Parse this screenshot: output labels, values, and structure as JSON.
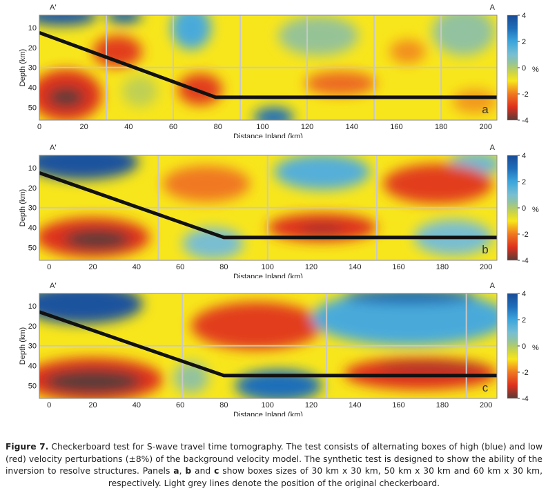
{
  "chart_data": [
    {
      "type": "heatmap",
      "panel_label": "a",
      "section_left": "A′",
      "section_right": "A",
      "xlabel": "Distance Inland (km)",
      "ylabel": "Depth (km)",
      "xlim": [
        0,
        205
      ],
      "ylim": [
        3.7,
        56.5
      ],
      "xticks": [
        0,
        20,
        40,
        60,
        80,
        100,
        120,
        140,
        160,
        180,
        200
      ],
      "yticks": [
        10,
        20,
        30,
        40,
        50
      ],
      "colorbar": {
        "ticks": [
          4,
          2,
          0,
          -2,
          -4
        ],
        "unit": "%",
        "range": [
          -4,
          4
        ]
      },
      "checkerboard_x": [
        30,
        60,
        90,
        120,
        150,
        180
      ],
      "checkerboard_depth": [
        30
      ],
      "slab_line": [
        [
          0,
          12.5
        ],
        [
          79,
          45
        ],
        [
          205,
          45
        ]
      ],
      "background_value": -1,
      "anomalies": [
        {
          "x": 10,
          "depth": 4,
          "rx": 16,
          "ry": 5,
          "value": 3.6
        },
        {
          "x": 38,
          "depth": 4,
          "rx": 8,
          "ry": 4,
          "value": 3.4
        },
        {
          "x": 68,
          "depth": 10,
          "rx": 9,
          "ry": 11,
          "value": 1.8
        },
        {
          "x": 125,
          "depth": 14,
          "rx": 18,
          "ry": 10,
          "value": 0.3
        },
        {
          "x": 190,
          "depth": 12,
          "rx": 14,
          "ry": 12,
          "value": 0.4
        },
        {
          "x": 35,
          "depth": 22,
          "rx": 11,
          "ry": 8,
          "value": -2.8
        },
        {
          "x": 165,
          "depth": 22,
          "rx": 8,
          "ry": 6,
          "value": -1.8
        },
        {
          "x": 12,
          "depth": 44,
          "rx": 16,
          "ry": 13,
          "value": -3.0
        },
        {
          "x": 12,
          "depth": 45,
          "rx": 8,
          "ry": 5,
          "value": -4.0
        },
        {
          "x": 72,
          "depth": 41,
          "rx": 10,
          "ry": 8,
          "value": -2.8
        },
        {
          "x": 135,
          "depth": 38,
          "rx": 16,
          "ry": 6,
          "value": -2.2
        },
        {
          "x": 45,
          "depth": 42,
          "rx": 8,
          "ry": 8,
          "value": -0.2
        },
        {
          "x": 105,
          "depth": 55,
          "rx": 9,
          "ry": 5,
          "value": 3.0
        },
        {
          "x": 195,
          "depth": 47,
          "rx": 10,
          "ry": 6,
          "value": -1.7
        }
      ]
    },
    {
      "type": "heatmap",
      "panel_label": "b",
      "section_left": "A′",
      "section_right": "A",
      "xlabel": "Distance Inland (km)",
      "ylabel": "Depth (km)",
      "xlim": [
        -4.5,
        205
      ],
      "ylim": [
        3.7,
        56.5
      ],
      "xticks": [
        0,
        20,
        40,
        60,
        80,
        100,
        120,
        140,
        160,
        180,
        200
      ],
      "yticks": [
        10,
        20,
        30,
        40,
        50
      ],
      "colorbar": {
        "ticks": [
          4,
          2,
          0,
          -2,
          -4
        ],
        "unit": "%",
        "range": [
          -4,
          4
        ]
      },
      "checkerboard_x": [
        50,
        100,
        150
      ],
      "checkerboard_depth": [
        30
      ],
      "slab_line": [
        [
          -4.5,
          12.5
        ],
        [
          80,
          45
        ],
        [
          205,
          45
        ]
      ],
      "background_value": -1,
      "anomalies": [
        {
          "x": 15,
          "depth": 7,
          "rx": 26,
          "ry": 9,
          "value": 3.8
        },
        {
          "x": 125,
          "depth": 12,
          "rx": 22,
          "ry": 9,
          "value": 1.6
        },
        {
          "x": 195,
          "depth": 8,
          "rx": 12,
          "ry": 6,
          "value": 1.2
        },
        {
          "x": 72,
          "depth": 18,
          "rx": 20,
          "ry": 9,
          "value": -2.0
        },
        {
          "x": 178,
          "depth": 18,
          "rx": 25,
          "ry": 10,
          "value": -2.8
        },
        {
          "x": 20,
          "depth": 45,
          "rx": 26,
          "ry": 10,
          "value": -3.0
        },
        {
          "x": 22,
          "depth": 46,
          "rx": 15,
          "ry": 5,
          "value": -4.0
        },
        {
          "x": 125,
          "depth": 40,
          "rx": 25,
          "ry": 7,
          "value": -3.0
        },
        {
          "x": 125,
          "depth": 41,
          "rx": 10,
          "ry": 2,
          "value": -3.6
        },
        {
          "x": 75,
          "depth": 48,
          "rx": 14,
          "ry": 8,
          "value": 1.0
        },
        {
          "x": 185,
          "depth": 45,
          "rx": 18,
          "ry": 9,
          "value": 1.0
        }
      ]
    },
    {
      "type": "heatmap",
      "panel_label": "c",
      "section_left": "A′",
      "section_right": "A",
      "xlabel": "Distance Inland (km)",
      "ylabel": "Depth (km)",
      "xlim": [
        -4.5,
        205
      ],
      "ylim": [
        3.7,
        56.5
      ],
      "xticks": [
        0,
        20,
        40,
        60,
        80,
        100,
        120,
        140,
        160,
        180,
        200
      ],
      "yticks": [
        10,
        20,
        30,
        40,
        50
      ],
      "colorbar": {
        "ticks": [
          4,
          2,
          0,
          -2,
          -4
        ],
        "unit": "%",
        "range": [
          -4,
          4
        ]
      },
      "checkerboard_x": [
        61,
        127,
        191
      ],
      "checkerboard_depth": [
        30
      ],
      "slab_line": [
        [
          -4.5,
          13
        ],
        [
          80,
          45
        ],
        [
          205,
          45
        ]
      ],
      "background_value": -1,
      "anomalies": [
        {
          "x": 15,
          "depth": 9,
          "rx": 28,
          "ry": 10,
          "value": 3.8
        },
        {
          "x": 95,
          "depth": 20,
          "rx": 30,
          "ry": 12,
          "value": -2.8
        },
        {
          "x": 165,
          "depth": 16,
          "rx": 45,
          "ry": 14,
          "value": 1.8
        },
        {
          "x": 165,
          "depth": 5,
          "rx": 30,
          "ry": 4,
          "value": 3.2
        },
        {
          "x": 20,
          "depth": 47,
          "rx": 32,
          "ry": 11,
          "value": -3.0
        },
        {
          "x": 20,
          "depth": 48,
          "rx": 22,
          "ry": 6,
          "value": -4.0
        },
        {
          "x": 105,
          "depth": 50,
          "rx": 20,
          "ry": 8,
          "value": 3.0
        },
        {
          "x": 65,
          "depth": 46,
          "rx": 8,
          "ry": 8,
          "value": 0.4
        },
        {
          "x": 170,
          "depth": 44,
          "rx": 35,
          "ry": 8,
          "value": -3.0
        },
        {
          "x": 175,
          "depth": 41,
          "rx": 25,
          "ry": 2,
          "value": -3.6
        }
      ]
    }
  ],
  "caption": {
    "figure_label": "Figure 7.",
    "text_1": " Checkerboard test for S-wave travel time tomography. The test consists of alternating boxes of high (blue) and low (red) velocity perturbations (±8%) of the background velocity model. The synthetic test is designed to show the ability of the inversion to resolve structures. Panels ",
    "panel_a": "a",
    "sep_1": ", ",
    "panel_b": "b",
    "sep_2": " and ",
    "panel_c": "c",
    "text_2": " show boxes sizes of 30 km x 30 km, 50 km x 30 km and 60 km x 30 km, respectively. Light grey lines denote the position of the original checkerboard."
  }
}
